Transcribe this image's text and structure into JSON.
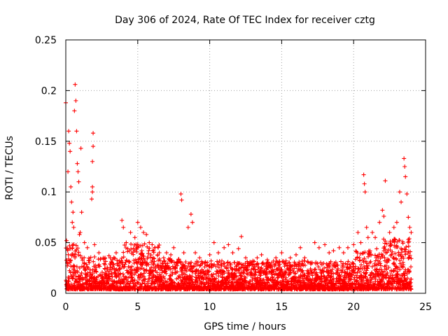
{
  "chart_data": {
    "type": "scatter",
    "title": "Day 306 of 2024, Rate Of TEC Index for receiver cztg",
    "xlabel": "GPS time / hours",
    "ylabel": "ROTI / TECUs",
    "xlim": [
      0,
      25
    ],
    "ylim": [
      0,
      0.25
    ],
    "xticks": [
      0,
      5,
      10,
      15,
      20,
      25
    ],
    "xtick_labels": [
      "0",
      "5",
      "10",
      "15",
      "20",
      "25"
    ],
    "yticks": [
      0,
      0.05,
      0.1,
      0.15,
      0.2,
      0.25
    ],
    "ytick_labels": [
      "0",
      "0.05",
      "0.1",
      "0.15",
      "0.2",
      "0.25"
    ],
    "grid": true,
    "marker": "+",
    "color": "#ff0000",
    "series": [
      {
        "name": "ROTI",
        "points": [
          [
            0.0,
            0.188
          ],
          [
            0.05,
            0.052
          ],
          [
            0.1,
            0.03
          ],
          [
            0.15,
            0.12
          ],
          [
            0.2,
            0.16
          ],
          [
            0.25,
            0.148
          ],
          [
            0.3,
            0.14
          ],
          [
            0.35,
            0.105
          ],
          [
            0.4,
            0.09
          ],
          [
            0.45,
            0.07
          ],
          [
            0.5,
            0.08
          ],
          [
            0.55,
            0.065
          ],
          [
            0.6,
            0.18
          ],
          [
            0.65,
            0.206
          ],
          [
            0.7,
            0.19
          ],
          [
            0.75,
            0.16
          ],
          [
            0.8,
            0.128
          ],
          [
            0.85,
            0.12
          ],
          [
            0.9,
            0.11
          ],
          [
            0.95,
            0.058
          ],
          [
            1.0,
            0.06
          ],
          [
            1.05,
            0.143
          ],
          [
            1.1,
            0.08
          ],
          [
            1.3,
            0.05
          ],
          [
            1.5,
            0.045
          ],
          [
            1.9,
            0.158
          ],
          [
            1.9,
            0.145
          ],
          [
            1.85,
            0.13
          ],
          [
            1.85,
            0.105
          ],
          [
            1.85,
            0.1
          ],
          [
            1.8,
            0.093
          ],
          [
            2.0,
            0.048
          ],
          [
            2.3,
            0.04
          ],
          [
            2.6,
            0.035
          ],
          [
            3.0,
            0.037
          ],
          [
            3.5,
            0.04
          ],
          [
            3.9,
            0.072
          ],
          [
            4.0,
            0.065
          ],
          [
            4.2,
            0.05
          ],
          [
            4.5,
            0.06
          ],
          [
            4.8,
            0.055
          ],
          [
            5.0,
            0.07
          ],
          [
            5.2,
            0.065
          ],
          [
            5.4,
            0.06
          ],
          [
            5.6,
            0.058
          ],
          [
            5.8,
            0.05
          ],
          [
            6.0,
            0.048
          ],
          [
            6.2,
            0.045
          ],
          [
            6.5,
            0.04
          ],
          [
            6.8,
            0.035
          ],
          [
            7.0,
            0.04
          ],
          [
            7.3,
            0.038
          ],
          [
            7.5,
            0.045
          ],
          [
            7.8,
            0.03
          ],
          [
            8.0,
            0.098
          ],
          [
            8.05,
            0.092
          ],
          [
            8.2,
            0.04
          ],
          [
            8.5,
            0.065
          ],
          [
            8.7,
            0.078
          ],
          [
            8.8,
            0.07
          ],
          [
            9.0,
            0.04
          ],
          [
            9.3,
            0.035
          ],
          [
            9.5,
            0.03
          ],
          [
            9.8,
            0.028
          ],
          [
            10.0,
            0.038
          ],
          [
            10.3,
            0.05
          ],
          [
            10.6,
            0.04
          ],
          [
            11.0,
            0.045
          ],
          [
            11.3,
            0.048
          ],
          [
            11.6,
            0.04
          ],
          [
            12.0,
            0.044
          ],
          [
            12.2,
            0.056
          ],
          [
            12.5,
            0.035
          ],
          [
            12.8,
            0.03
          ],
          [
            13.0,
            0.032
          ],
          [
            13.3,
            0.035
          ],
          [
            13.6,
            0.038
          ],
          [
            14.0,
            0.033
          ],
          [
            14.3,
            0.03
          ],
          [
            14.6,
            0.035
          ],
          [
            15.0,
            0.04
          ],
          [
            15.3,
            0.032
          ],
          [
            15.6,
            0.035
          ],
          [
            16.0,
            0.038
          ],
          [
            16.3,
            0.045
          ],
          [
            16.6,
            0.035
          ],
          [
            17.0,
            0.03
          ],
          [
            17.3,
            0.05
          ],
          [
            17.6,
            0.045
          ],
          [
            18.0,
            0.048
          ],
          [
            18.3,
            0.04
          ],
          [
            18.6,
            0.042
          ],
          [
            19.0,
            0.045
          ],
          [
            19.3,
            0.04
          ],
          [
            19.6,
            0.045
          ],
          [
            20.0,
            0.048
          ],
          [
            20.3,
            0.06
          ],
          [
            20.5,
            0.05
          ],
          [
            20.7,
            0.117
          ],
          [
            20.75,
            0.108
          ],
          [
            20.8,
            0.1
          ],
          [
            20.9,
            0.065
          ],
          [
            21.0,
            0.055
          ],
          [
            21.3,
            0.06
          ],
          [
            21.5,
            0.055
          ],
          [
            21.8,
            0.07
          ],
          [
            22.0,
            0.082
          ],
          [
            22.1,
            0.076
          ],
          [
            22.2,
            0.111
          ],
          [
            22.5,
            0.06
          ],
          [
            22.8,
            0.065
          ],
          [
            23.0,
            0.07
          ],
          [
            23.2,
            0.1
          ],
          [
            23.3,
            0.09
          ],
          [
            23.5,
            0.133
          ],
          [
            23.55,
            0.125
          ],
          [
            23.6,
            0.115
          ],
          [
            23.7,
            0.098
          ],
          [
            23.8,
            0.075
          ],
          [
            23.9,
            0.065
          ],
          [
            24.0,
            0.06
          ]
        ]
      }
    ]
  }
}
